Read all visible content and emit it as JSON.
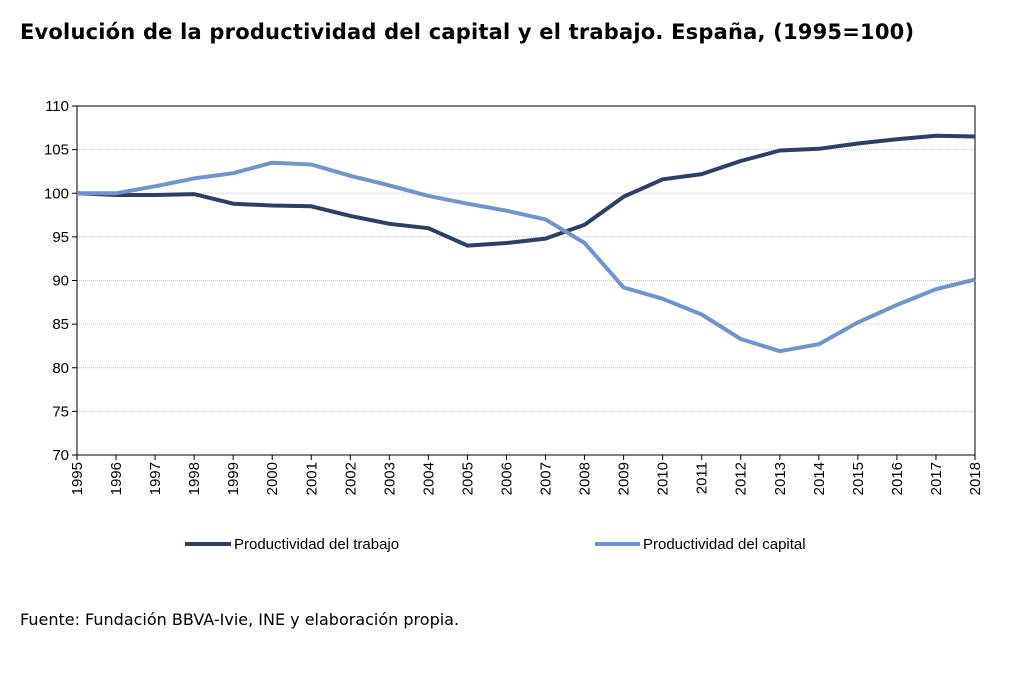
{
  "chart_data": {
    "type": "line",
    "title": "Evolución de la productividad del capital y el trabajo. España, (1995=100)",
    "x": [
      "1995",
      "1996",
      "1997",
      "1998",
      "1999",
      "2000",
      "2001",
      "2002",
      "2003",
      "2004",
      "2005",
      "2006",
      "2007",
      "2008",
      "2009",
      "2010",
      "2011",
      "2012",
      "2013",
      "2014",
      "2015",
      "2016",
      "2017",
      "2018"
    ],
    "ylim": [
      70,
      110
    ],
    "yticks": [
      70,
      75,
      80,
      85,
      90,
      95,
      100,
      105,
      110
    ],
    "grid": true,
    "legend_position": "bottom",
    "series": [
      {
        "name": "Productividad del trabajo",
        "color": "#2e3f66",
        "values": [
          100,
          99.8,
          99.8,
          99.9,
          98.8,
          98.6,
          98.5,
          97.4,
          96.5,
          96.0,
          94.0,
          94.3,
          94.8,
          96.4,
          99.6,
          101.6,
          102.2,
          103.7,
          104.9,
          105.1,
          105.7,
          106.2,
          106.6,
          106.5
        ]
      },
      {
        "name": "Productividad del capital",
        "color": "#6f94d0",
        "values": [
          100,
          100.0,
          100.8,
          101.7,
          102.3,
          103.5,
          103.3,
          102.0,
          100.9,
          99.7,
          98.8,
          98.0,
          97.0,
          94.3,
          89.2,
          87.9,
          86.1,
          83.3,
          81.9,
          82.7,
          85.2,
          87.2,
          89.0,
          90.1
        ]
      }
    ]
  },
  "source_note": "Fuente: Fundación BBVA-Ivie, INE y elaboración propia."
}
